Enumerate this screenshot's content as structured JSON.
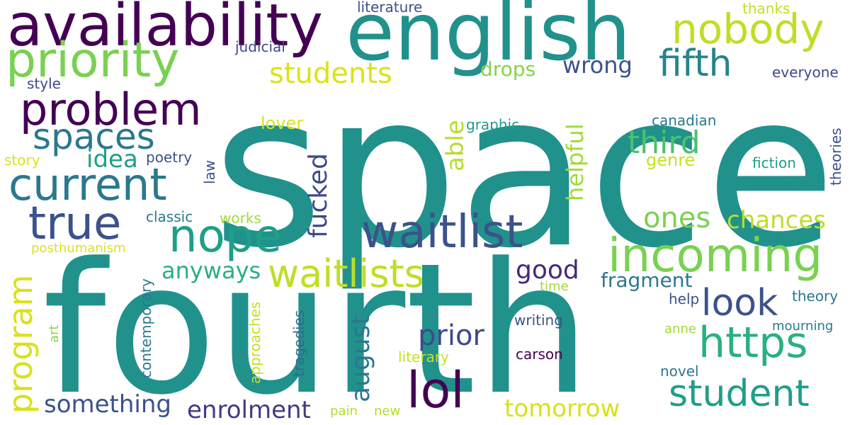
{
  "words": [
    {
      "text": "space",
      "color": "#21918c"
    },
    {
      "text": "fourth",
      "color": "#21918c"
    },
    {
      "text": "english",
      "color": "#21918c"
    },
    {
      "text": "availability",
      "color": "#440154"
    },
    {
      "text": "priority",
      "color": "#7ad151"
    },
    {
      "text": "nobody",
      "color": "#bddf26"
    },
    {
      "text": "problem",
      "color": "#440154"
    },
    {
      "text": "fifth",
      "color": "#25848e"
    },
    {
      "text": "current",
      "color": "#2a788e"
    },
    {
      "text": "spaces",
      "color": "#2a788e"
    },
    {
      "text": "true",
      "color": "#3b528b"
    },
    {
      "text": "incoming",
      "color": "#7ad151"
    },
    {
      "text": "waitlist",
      "color": "#3b528b"
    },
    {
      "text": "nope",
      "color": "#1f9e89"
    },
    {
      "text": "waitlists",
      "color": "#bddf26"
    },
    {
      "text": "https",
      "color": "#2ab07f"
    },
    {
      "text": "student",
      "color": "#1f9e89"
    },
    {
      "text": "lol",
      "color": "#440154"
    },
    {
      "text": "look",
      "color": "#3b528b"
    },
    {
      "text": "program",
      "color": "#d8e219"
    },
    {
      "text": "students",
      "color": "#dae319"
    },
    {
      "text": "third",
      "color": "#4ac16d"
    },
    {
      "text": "wrong",
      "color": "#3b528b"
    },
    {
      "text": "drops",
      "color": "#86d549"
    },
    {
      "text": "ones",
      "color": "#7ad151"
    },
    {
      "text": "chances",
      "color": "#bddf26"
    },
    {
      "text": "idea",
      "color": "#1fa088"
    },
    {
      "text": "anyways",
      "color": "#2ab07f"
    },
    {
      "text": "good",
      "color": "#482878"
    },
    {
      "text": "prior",
      "color": "#3e4989"
    },
    {
      "text": "something",
      "color": "#3b528b"
    },
    {
      "text": "enrolment",
      "color": "#443983"
    },
    {
      "text": "tomorrow",
      "color": "#d8e219"
    },
    {
      "text": "fragment",
      "color": "#2a788e"
    },
    {
      "text": "august",
      "color": "#2a788e"
    },
    {
      "text": "fucked",
      "color": "#3e4989"
    },
    {
      "text": "able",
      "color": "#b5de2b"
    },
    {
      "text": "helpful",
      "color": "#a2da37"
    },
    {
      "text": "genre",
      "color": "#c8e020"
    },
    {
      "text": "lover",
      "color": "#dae319"
    },
    {
      "text": "literature",
      "color": "#3b528b"
    },
    {
      "text": "judicial",
      "color": "#3e4989"
    },
    {
      "text": "thanks",
      "color": "#c2df23"
    },
    {
      "text": "everyone",
      "color": "#3e4989"
    },
    {
      "text": "style",
      "color": "#3e4989"
    },
    {
      "text": "graphic",
      "color": "#1f9e89"
    },
    {
      "text": "canadian",
      "color": "#2a788e"
    },
    {
      "text": "story",
      "color": "#dae319"
    },
    {
      "text": "poetry",
      "color": "#3b528b"
    },
    {
      "text": "law",
      "color": "#3b528b"
    },
    {
      "text": "fiction",
      "color": "#1f9e89"
    },
    {
      "text": "theories",
      "color": "#3b528b"
    },
    {
      "text": "classic",
      "color": "#2a788e"
    },
    {
      "text": "works",
      "color": "#a2da37"
    },
    {
      "text": "posthumanism",
      "color": "#dae319"
    },
    {
      "text": "time",
      "color": "#a2da37"
    },
    {
      "text": "help",
      "color": "#3b528b"
    },
    {
      "text": "theory",
      "color": "#2a788e"
    },
    {
      "text": "writing",
      "color": "#3b528b"
    },
    {
      "text": "anne",
      "color": "#a2da37"
    },
    {
      "text": "mourning",
      "color": "#2a788e"
    },
    {
      "text": "art",
      "color": "#86d549"
    },
    {
      "text": "contemporary",
      "color": "#2a788e"
    },
    {
      "text": "approaches",
      "color": "#c8e020"
    },
    {
      "text": "tragedies",
      "color": "#31688e"
    },
    {
      "text": "literary",
      "color": "#c8e020"
    },
    {
      "text": "carson",
      "color": "#440154"
    },
    {
      "text": "novel",
      "color": "#2a788e"
    },
    {
      "text": "pain",
      "color": "#b5de2b"
    },
    {
      "text": "new",
      "color": "#b5de2b"
    }
  ]
}
